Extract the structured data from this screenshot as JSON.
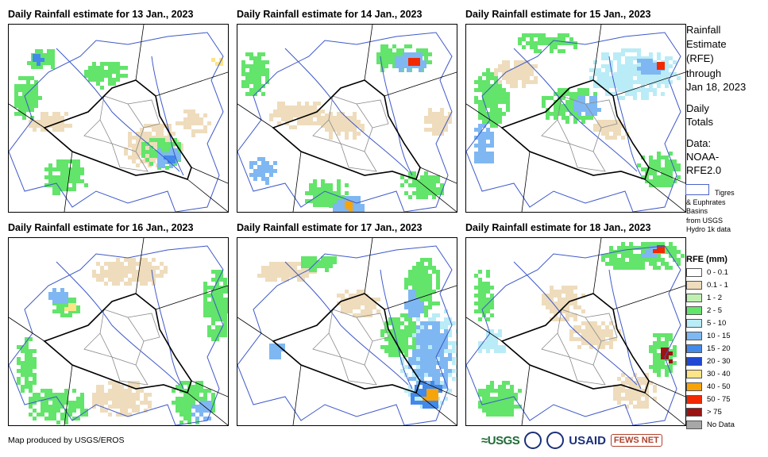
{
  "panels": [
    {
      "title": "Daily Rainfall estimate for 13 Jan., 2023"
    },
    {
      "title": "Daily Rainfall estimate for 14 Jan., 2023"
    },
    {
      "title": "Daily Rainfall estimate for 15 Jan., 2023"
    },
    {
      "title": "Daily Rainfall estimate for 16 Jan., 2023"
    },
    {
      "title": "Daily Rainfall estimate for 17 Jan., 2023"
    },
    {
      "title": "Daily Rainfall estimate for 18 Jan., 2023"
    }
  ],
  "sidebar": {
    "heading_line1": "Rainfall",
    "heading_line2": "Estimate",
    "heading_line3": "(RFE)",
    "through": "through",
    "date": "Jan 18, 2023",
    "daily1": "Daily",
    "daily2": "Totals",
    "data_label": "Data:",
    "data_src1": "NOAA-",
    "data_src2": "RFE2.0",
    "basin_line1": "Tigres",
    "basin_line2": "& Euphrates",
    "basin_line3": "Basins",
    "basin_line4": "from USGS",
    "basin_line5": "Hydro 1k data"
  },
  "legend": {
    "title": "RFE (mm)",
    "items": [
      {
        "label": "0 - 0.1",
        "color": "#ffffff"
      },
      {
        "label": "0.1 - 1",
        "color": "#eedcbc"
      },
      {
        "label": "1 - 2",
        "color": "#bff0b1"
      },
      {
        "label": "2 - 5",
        "color": "#63e46b"
      },
      {
        "label": "5 - 10",
        "color": "#b9ecf6"
      },
      {
        "label": "10 - 15",
        "color": "#7fb7f2"
      },
      {
        "label": "15 - 20",
        "color": "#4389ea"
      },
      {
        "label": "20 - 30",
        "color": "#1f49d4"
      },
      {
        "label": "30 - 40",
        "color": "#fce487"
      },
      {
        "label": "40 - 50",
        "color": "#f7a30a"
      },
      {
        "label": "50 - 75",
        "color": "#f22800"
      },
      {
        "label": "> 75",
        "color": "#9c1313"
      },
      {
        "label": "No Data",
        "color": "#a7a7a7"
      }
    ]
  },
  "credit": "Map produced by USGS/EROS",
  "logos": {
    "usgs": "≈USGS",
    "usaid": "USAID",
    "fews": "FEWS NET"
  }
}
